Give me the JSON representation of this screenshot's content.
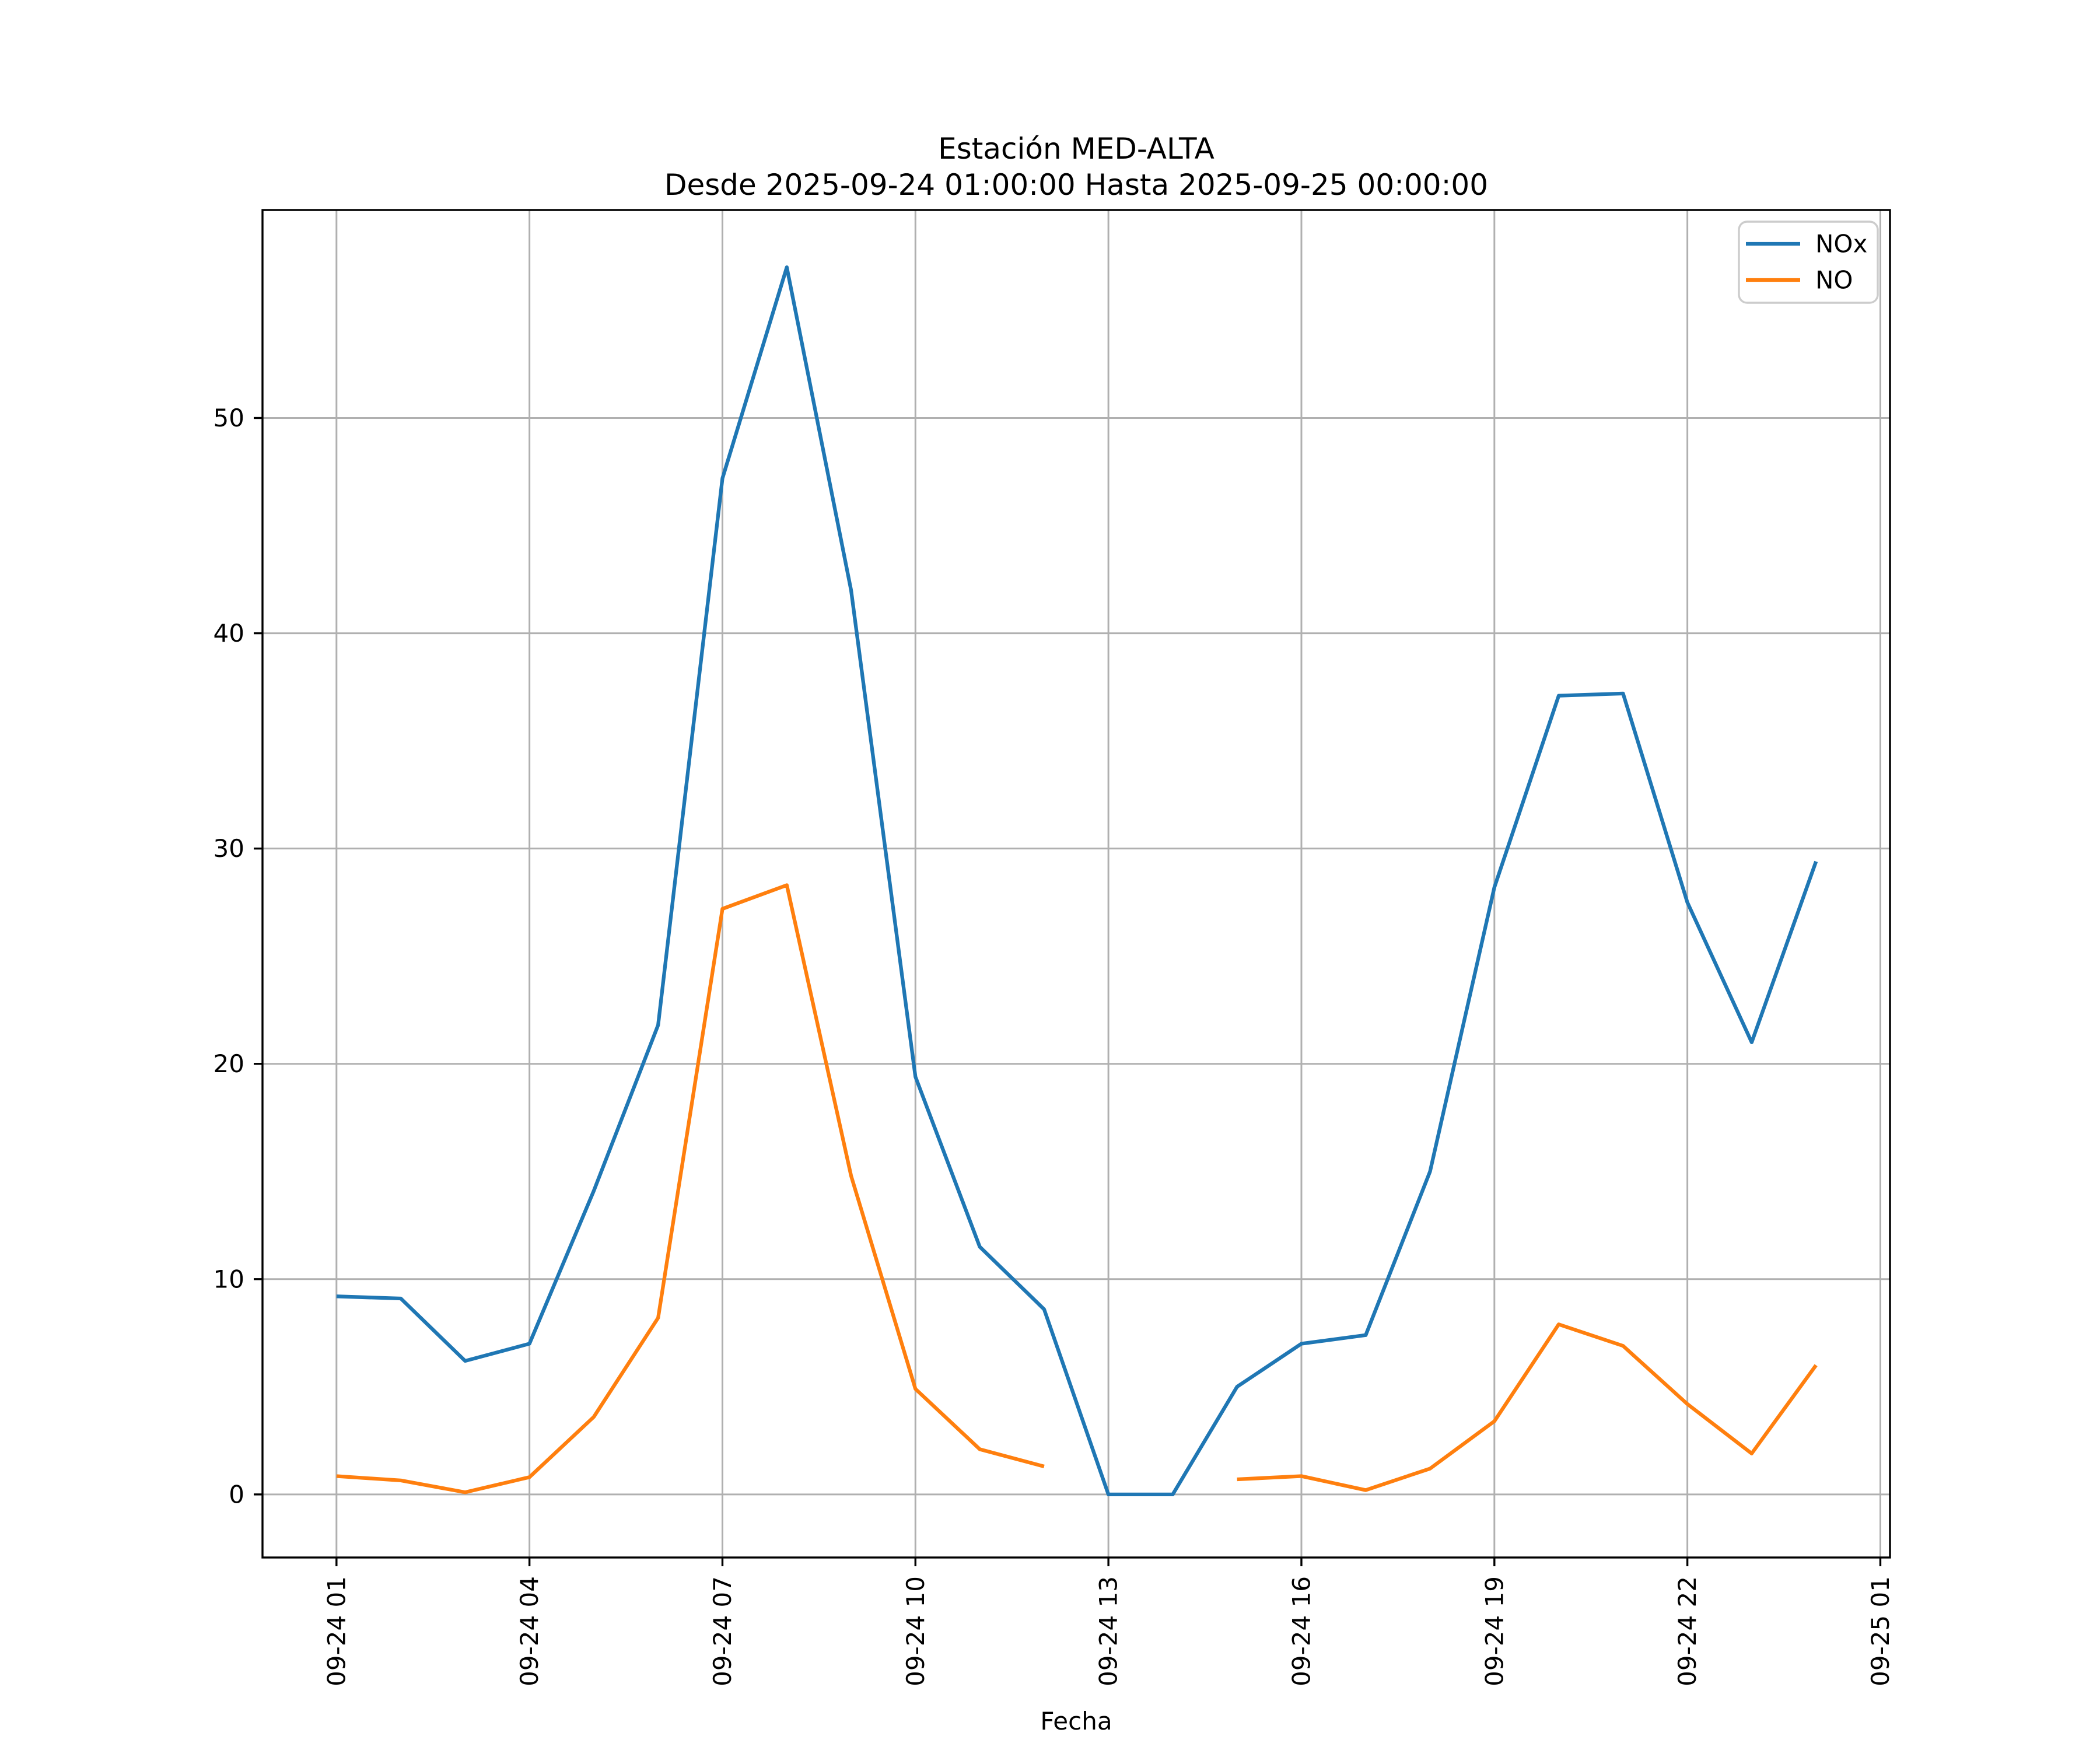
{
  "chart_data": {
    "type": "line",
    "title_line1": "Estación MED-ALTA",
    "title_line2": "Desde 2025-09-24 01:00:00 Hasta 2025-09-25 00:00:00",
    "xlabel": "Fecha",
    "ylabel": "",
    "grid": true,
    "legend_position": "upper right",
    "background_color": "#ffffff",
    "grid_color": "#b0b0b0",
    "spine_color": "#000000",
    "x_hours": [
      1,
      2,
      3,
      4,
      5,
      6,
      7,
      8,
      9,
      10,
      11,
      12,
      13,
      14,
      15,
      16,
      17,
      18,
      19,
      20,
      21,
      22,
      23,
      24
    ],
    "x_tick_hours": [
      1,
      4,
      7,
      10,
      13,
      16,
      19,
      22,
      25
    ],
    "x_tick_labels": [
      "09-24 01",
      "09-24 04",
      "09-24 07",
      "09-24 10",
      "09-24 13",
      "09-24 16",
      "09-24 19",
      "09-24 22",
      "09-25 01"
    ],
    "y_ticks": [
      "0",
      "10",
      "20",
      "30",
      "40",
      "50"
    ],
    "y_tick_values": [
      0,
      10,
      20,
      30,
      40,
      50
    ],
    "xlim_hours": [
      -0.15,
      25.15
    ],
    "ylim": [
      -2.93,
      59.66
    ],
    "series": [
      {
        "name": "NOx",
        "color": "#1f77b4",
        "values": [
          9.2,
          9.1,
          6.2,
          7.0,
          14.1,
          21.8,
          47.2,
          57.0,
          42.0,
          19.4,
          11.5,
          8.6,
          0.0,
          0.0,
          5.0,
          7.0,
          7.4,
          15.0,
          28.2,
          37.1,
          37.2,
          27.5,
          21.0,
          29.4
        ]
      },
      {
        "name": "NO",
        "color": "#ff7f0e",
        "values": [
          0.85,
          0.65,
          0.1,
          0.8,
          3.6,
          8.2,
          27.2,
          28.3,
          14.8,
          4.9,
          2.1,
          1.3,
          null,
          null,
          0.7,
          0.85,
          0.2,
          1.2,
          3.4,
          7.9,
          6.9,
          4.2,
          1.9,
          6.0
        ]
      }
    ],
    "legend_entries": [
      {
        "label": "NOx",
        "color": "#1f77b4"
      },
      {
        "label": "NO",
        "color": "#ff7f0e"
      }
    ]
  }
}
